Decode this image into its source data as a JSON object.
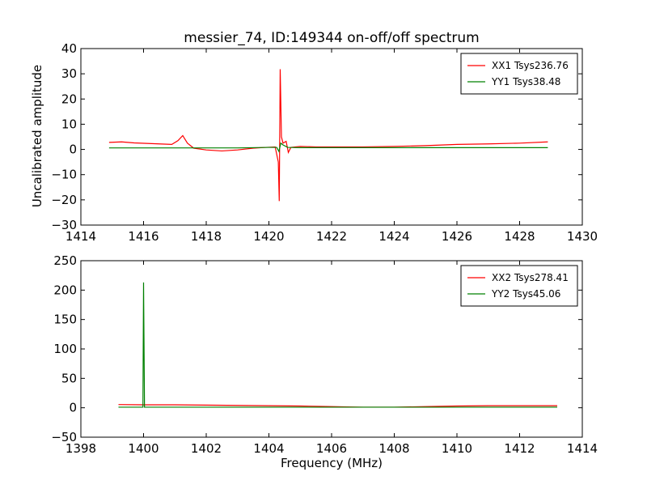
{
  "figure": {
    "title": "messier_74, ID:149344 on-off/off spectrum",
    "ylabel": "Uncalibrated amplitude",
    "xlabel": "Frequency (MHz)"
  },
  "chart_data": [
    {
      "type": "line",
      "title": "messier_74, ID:149344 on-off/off spectrum",
      "ylabel": "Uncalibrated amplitude",
      "xlabel": "",
      "xlim": [
        1414,
        1430
      ],
      "ylim": [
        -30,
        40
      ],
      "xticks": [
        "1414",
        "1416",
        "1418",
        "1420",
        "1422",
        "1424",
        "1426",
        "1428",
        "1430"
      ],
      "yticks": [
        "−30",
        "−20",
        "−10",
        "0",
        "10",
        "20",
        "30",
        "40"
      ],
      "xtick_values": [
        1414,
        1416,
        1418,
        1420,
        1422,
        1424,
        1426,
        1428,
        1430
      ],
      "ytick_values": [
        -30,
        -20,
        -10,
        0,
        10,
        20,
        30,
        40
      ],
      "legend_position": "top-right",
      "series": [
        {
          "name": "XX1 Tsys236.76",
          "color": "#ff0000",
          "x": [
            1414.9,
            1415.3,
            1415.7,
            1416.1,
            1416.5,
            1416.9,
            1417.1,
            1417.25,
            1417.4,
            1417.6,
            1418.0,
            1418.5,
            1419.0,
            1419.5,
            1419.9,
            1420.2,
            1420.3,
            1420.33,
            1420.36,
            1420.4,
            1420.45,
            1420.55,
            1420.62,
            1420.7,
            1421.0,
            1421.5,
            1422.0,
            1423.0,
            1424.0,
            1425.0,
            1426.0,
            1427.0,
            1428.0,
            1428.9
          ],
          "y": [
            2.8,
            3.0,
            2.6,
            2.4,
            2.2,
            2.0,
            3.5,
            5.5,
            2.5,
            0.5,
            -0.2,
            -0.6,
            -0.2,
            0.5,
            0.8,
            1.0,
            -5,
            -20.5,
            31.8,
            5,
            2.5,
            3.2,
            -1.2,
            0.8,
            1.2,
            1.0,
            1.0,
            1.0,
            1.2,
            1.5,
            2.0,
            2.2,
            2.5,
            3.0
          ]
        },
        {
          "name": "YY1 Tsys38.48",
          "color": "#008000",
          "x": [
            1414.9,
            1416.0,
            1417.0,
            1418.0,
            1419.0,
            1420.0,
            1420.25,
            1420.32,
            1420.38,
            1420.45,
            1420.6,
            1421.0,
            1422.0,
            1424.0,
            1426.0,
            1428.0,
            1428.9
          ],
          "y": [
            0.6,
            0.6,
            0.6,
            0.6,
            0.6,
            0.8,
            0.8,
            -0.8,
            2.5,
            1.8,
            0.8,
            0.7,
            0.7,
            0.7,
            0.7,
            0.7,
            0.7
          ]
        }
      ]
    },
    {
      "type": "line",
      "title": "",
      "ylabel": "",
      "xlabel": "Frequency (MHz)",
      "xlim": [
        1398,
        1414
      ],
      "ylim": [
        -50,
        250
      ],
      "xticks": [
        "1398",
        "1400",
        "1402",
        "1404",
        "1406",
        "1408",
        "1410",
        "1412",
        "1414"
      ],
      "yticks": [
        "−50",
        "0",
        "50",
        "100",
        "150",
        "200",
        "250"
      ],
      "xtick_values": [
        1398,
        1400,
        1402,
        1404,
        1406,
        1408,
        1410,
        1412,
        1414
      ],
      "ytick_values": [
        -50,
        0,
        50,
        100,
        150,
        200,
        250
      ],
      "legend_position": "top-right",
      "series": [
        {
          "name": "XX2 Tsys278.41",
          "color": "#ff0000",
          "x": [
            1399.2,
            1400.0,
            1401.0,
            1402.0,
            1403.0,
            1404.0,
            1405.0,
            1406.0,
            1407.0,
            1408.0,
            1409.0,
            1410.0,
            1411.0,
            1412.0,
            1413.2
          ],
          "y": [
            5.5,
            5.0,
            5.0,
            4.5,
            4.0,
            3.5,
            3.0,
            2.0,
            1.0,
            1.0,
            2.0,
            3.0,
            3.5,
            3.5,
            3.5
          ]
        },
        {
          "name": "YY2 Tsys45.06",
          "color": "#008000",
          "x": [
            1399.2,
            1399.9,
            1399.98,
            1400.0,
            1400.03,
            1400.1,
            1401.0,
            1403.0,
            1405.0,
            1407.0,
            1409.0,
            1411.0,
            1413.2
          ],
          "y": [
            1.0,
            1.0,
            1.0,
            213,
            1.0,
            1.0,
            1.0,
            1.0,
            1.0,
            1.0,
            1.0,
            1.0,
            1.0
          ]
        }
      ]
    }
  ]
}
